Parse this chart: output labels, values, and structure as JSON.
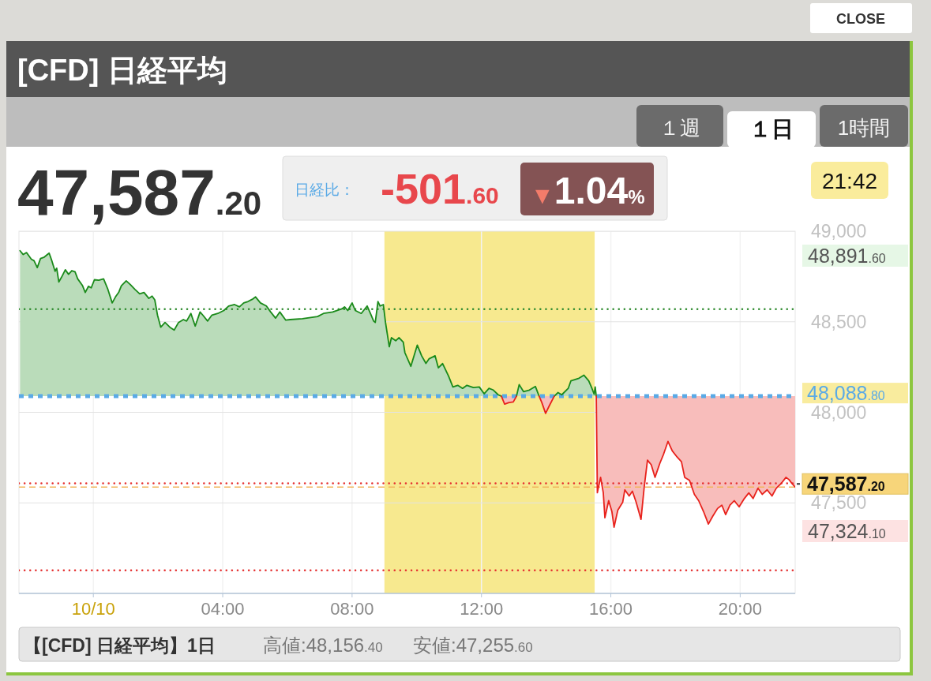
{
  "chart_data": {
    "type": "line",
    "title": "[CFD] 日経平均",
    "xlim": [
      "--10-09T21:42",
      "--10-10T21:42"
    ],
    "xticks": [
      {
        "value": "--10-10T00:00",
        "label": "10/10"
      },
      {
        "value": "--10-10T04:00",
        "label": "04:00"
      },
      {
        "value": "--10-10T08:00",
        "label": "08:00"
      },
      {
        "value": "--10-10T12:00",
        "label": "12:00"
      },
      {
        "value": "--10-10T16:00",
        "label": "16:00"
      },
      {
        "value": "--10-10T20:00",
        "label": "20:00"
      }
    ],
    "ylim": [
      47000,
      49000
    ],
    "yticks": [
      {
        "value": 47500,
        "label": "47,500"
      },
      {
        "value": 48000,
        "label": "48,000"
      },
      {
        "value": 48500,
        "label": "48,500"
      },
      {
        "value": 49000,
        "label": "49,000"
      }
    ],
    "grid": true,
    "series": [
      {
        "color": "#1a8a1a",
        "x": [
          "--10-09T21:44",
          "--10-09T21:50",
          "--10-09T21:56",
          "--10-09T22:05",
          "--10-09T22:10",
          "--10-09T22:16",
          "--10-09T22:22",
          "--10-09T22:29",
          "--10-09T22:38",
          "--10-09T22:43",
          "--10-09T22:49",
          "--10-09T22:52",
          "--10-09T22:56",
          "--10-09T23:01",
          "--10-09T23:08",
          "--10-09T23:14",
          "--10-09T23:20",
          "--10-09T23:26",
          "--10-09T23:31",
          "--10-09T23:40",
          "--10-09T23:45",
          "--10-09T23:51",
          "--10-09T23:56",
          "--10-10T00:02",
          "--10-10T00:10",
          "--10-10T00:19",
          "--10-10T00:27",
          "--10-10T00:35",
          "--10-10T00:41",
          "--10-10T00:47",
          "--10-10T00:52",
          "--10-10T01:01",
          "--10-10T01:09",
          "--10-10T01:17",
          "--10-10T01:26",
          "--10-10T01:34",
          "--10-10T01:43",
          "--10-10T01:49",
          "--10-10T01:54",
          "--10-10T01:59",
          "--10-10T02:05",
          "--10-10T02:13",
          "--10-10T02:22",
          "--10-10T02:30",
          "--10-10T02:38",
          "--10-10T02:47",
          "--10-10T02:53",
          "--10-10T03:01",
          "--10-10T03:09",
          "--10-10T03:18",
          "--10-10T03:23",
          "--10-10T03:32",
          "--10-10T03:40",
          "--10-10T03:51",
          "--10-10T04:02",
          "--10-10T04:11",
          "--10-10T04:22",
          "--10-10T04:31",
          "--10-10T04:39",
          "--10-10T04:47",
          "--10-10T04:56",
          "--10-10T05:01",
          "--10-10T05:10",
          "--10-10T05:21",
          "--10-10T05:29",
          "--10-10T05:38",
          "--10-10T05:46",
          "--10-10T05:57",
          "--10-10T06:05",
          "--10-10T06:28",
          "--10-10T06:56",
          "--10-10T07:07",
          "--10-10T07:24",
          "--10-10T07:41",
          "--10-10T07:46",
          "--10-10T07:52",
          "--10-10T08:00",
          "--10-10T08:06",
          "--10-10T08:17",
          "--10-10T08:28",
          "--10-10T08:34",
          "--10-10T08:40",
          "--10-10T08:43",
          "--10-10T08:48",
          "--10-10T08:52",
          "--10-10T08:58",
          "--10-10T09:02",
          "--10-10T09:09",
          "--10-10T09:13",
          "--10-10T09:21",
          "--10-10T09:27",
          "--10-10T09:35",
          "--10-10T09:38",
          "--10-10T09:49",
          "--10-10T10:01",
          "--10-10T10:09",
          "--10-10T10:17",
          "--10-10T10:23",
          "--10-10T10:34",
          "--10-10T10:40",
          "--10-10T10:48",
          "--10-10T10:59",
          "--10-10T11:07",
          "--10-10T11:16",
          "--10-10T11:25",
          "--10-10T11:33",
          "--10-10T11:45",
          "--10-10T11:56",
          "--10-10T12:05",
          "--10-10T12:14",
          "--10-10T12:22",
          "--10-10T12:31",
          "--10-10T12:37",
          null,
          "--10-10T13:05",
          "--10-10T13:10",
          "--10-10T13:18",
          "--10-10T13:29",
          "--10-10T13:40",
          "--10-10T13:47",
          null,
          "--10-10T14:15",
          "--10-10T14:22",
          "--10-10T14:29",
          "--10-10T14:41",
          "--10-10T14:46",
          "--10-10T15:01",
          "--10-10T15:10",
          "--10-10T15:19",
          "--10-10T15:25",
          "--10-10T15:29",
          "--10-10T15:31",
          "--10-10T15:33"
        ],
        "values": [
          48892,
          48871,
          48882,
          48845,
          48837,
          48799,
          48849,
          48857,
          48879,
          48837,
          48779,
          48796,
          48720,
          48746,
          48787,
          48762,
          48782,
          48776,
          48737,
          48699,
          48662,
          48696,
          48687,
          48732,
          48729,
          48737,
          48679,
          48604,
          48637,
          48662,
          48699,
          48726,
          48704,
          48679,
          48654,
          48662,
          48629,
          48642,
          48621,
          48537,
          48470,
          48496,
          48470,
          48454,
          48496,
          48512,
          48504,
          48546,
          48476,
          48554,
          48537,
          48504,
          48537,
          48546,
          48562,
          48587,
          48595,
          48582,
          48604,
          48612,
          48626,
          48637,
          48604,
          48587,
          48554,
          48520,
          48554,
          48509,
          48512,
          48517,
          48529,
          48546,
          48554,
          48571,
          48582,
          48562,
          48604,
          48562,
          48546,
          48587,
          48546,
          48504,
          48496,
          48612,
          48587,
          48595,
          48496,
          48362,
          48412,
          48395,
          48412,
          48387,
          48329,
          48254,
          48371,
          48312,
          48270,
          48296,
          48312,
          48246,
          48269,
          48200,
          48140,
          48149,
          48132,
          48149,
          48137,
          48140,
          48102,
          48132,
          48123,
          48097,
          48089,
          null,
          48089,
          48153,
          48114,
          48123,
          48143,
          48089,
          null,
          48089,
          48109,
          48097,
          48132,
          48174,
          48188,
          48205,
          48174,
          48132,
          48100,
          48140,
          48089
        ],
        "lower": [
          48089,
          48089,
          48089,
          48089,
          48089,
          48089,
          48089,
          48089,
          48089,
          48089,
          48089,
          48089,
          48089,
          48089,
          48089,
          48089,
          48089,
          48089,
          48089,
          48089,
          48089,
          48089,
          48089,
          48089,
          48089,
          48089,
          48089,
          48089,
          48089,
          48089,
          48089,
          48089,
          48089,
          48089,
          48089,
          48089,
          48089,
          48089,
          48089,
          48089,
          48089,
          48089,
          48089,
          48089,
          48089,
          48089,
          48089,
          48089,
          48089,
          48089,
          48089,
          48089,
          48089,
          48089,
          48089,
          48089,
          48089,
          48089,
          48089,
          48089,
          48089,
          48089,
          48089,
          48089,
          48089,
          48089,
          48089,
          48089,
          48089,
          48089,
          48089,
          48089,
          48089,
          48089,
          48089,
          48089,
          48089,
          48089,
          48089,
          48089,
          48089,
          48089,
          48089,
          48089,
          48089,
          48089,
          48089,
          48089,
          48089,
          48089,
          48089,
          48089,
          48089,
          48089,
          48089,
          48089,
          48089,
          48089,
          48089,
          48089,
          48089,
          48089,
          48089,
          48089,
          48089,
          48089,
          48089,
          48089,
          48089,
          48089,
          48089,
          48089,
          48089,
          null,
          48089,
          48089,
          48089,
          48089,
          48089,
          48089,
          null,
          48089,
          48089,
          48089,
          48089,
          48089,
          48089,
          48089,
          48089,
          48089,
          48089,
          48089,
          48089
        ],
        "upper": [
          48892,
          48871,
          48882,
          48845,
          48837,
          48799,
          48849,
          48857,
          48879,
          48837,
          48779,
          48796,
          48720,
          48746,
          48787,
          48762,
          48782,
          48776,
          48737,
          48699,
          48662,
          48696,
          48687,
          48732,
          48729,
          48737,
          48679,
          48604,
          48637,
          48662,
          48699,
          48726,
          48704,
          48679,
          48654,
          48662,
          48629,
          48642,
          48621,
          48537,
          48470,
          48496,
          48470,
          48454,
          48496,
          48512,
          48504,
          48546,
          48476,
          48554,
          48537,
          48504,
          48537,
          48546,
          48562,
          48587,
          48595,
          48582,
          48604,
          48612,
          48626,
          48637,
          48604,
          48587,
          48554,
          48520,
          48554,
          48509,
          48512,
          48517,
          48529,
          48546,
          48554,
          48571,
          48582,
          48562,
          48604,
          48562,
          48546,
          48587,
          48546,
          48504,
          48496,
          48612,
          48587,
          48595,
          48496,
          48362,
          48412,
          48395,
          48412,
          48387,
          48329,
          48254,
          48371,
          48312,
          48270,
          48296,
          48312,
          48246,
          48269,
          48200,
          48140,
          48149,
          48132,
          48149,
          48137,
          48140,
          48102,
          48132,
          48123,
          48097,
          48089,
          null,
          48089,
          48153,
          48114,
          48123,
          48143,
          48089,
          null,
          48089,
          48109,
          48097,
          48132,
          48174,
          48188,
          48205,
          48174,
          48132,
          48100,
          48140,
          48089
        ]
      },
      {
        "color": "#e8221c",
        "x": [
          "--10-10T12:37",
          "--10-10T12:43",
          "--10-10T12:51",
          "--10-10T12:59",
          "--10-10T13:05",
          null,
          "--10-10T13:47",
          "--10-10T13:52",
          "--10-10T13:59",
          "--10-10T14:06",
          "--10-10T14:15",
          null,
          "--10-10T15:33",
          "--10-10T15:35",
          "--10-10T15:41",
          "--10-10T15:46",
          "--10-10T15:49",
          "--10-10T15:56",
          "--10-10T16:02",
          "--10-10T16:06",
          "--10-10T16:13",
          "--10-10T16:22",
          "--10-10T16:26",
          "--10-10T16:34",
          "--10-10T16:40",
          "--10-10T16:47",
          "--10-10T16:56",
          "--10-10T17:02",
          "--10-10T17:08",
          "--10-10T17:15",
          "--10-10T17:22",
          "--10-10T17:31",
          "--10-10T17:38",
          "--10-10T17:46",
          "--10-10T17:54",
          "--10-10T18:03",
          "--10-10T18:11",
          "--10-10T18:17",
          "--10-10T18:26",
          "--10-10T18:35",
          "--10-10T18:43",
          "--10-10T18:52",
          "--10-10T19:01",
          "--10-10T19:09",
          "--10-10T19:18",
          "--10-10T19:26",
          "--10-10T19:33",
          "--10-10T19:41",
          "--10-10T19:49",
          "--10-10T19:58",
          "--10-10T20:07",
          "--10-10T20:16",
          "--10-10T20:24",
          "--10-10T20:33",
          "--10-10T20:41",
          "--10-10T20:50",
          "--10-10T20:59",
          "--10-10T21:07",
          "--10-10T21:16",
          "--10-10T21:25",
          "--10-10T21:31",
          "--10-10T21:36",
          "--10-10T21:42"
        ],
        "values": [
          48089,
          48045,
          48054,
          48057,
          48089,
          null,
          48089,
          48054,
          47994,
          48037,
          48089,
          null,
          48089,
          47556,
          47641,
          47556,
          47418,
          47512,
          47452,
          47366,
          47460,
          47503,
          47572,
          47538,
          47564,
          47503,
          47409,
          47589,
          47736,
          47710,
          47641,
          47719,
          47770,
          47839,
          47787,
          47753,
          47727,
          47641,
          47624,
          47547,
          47512,
          47452,
          47383,
          47426,
          47469,
          47487,
          47435,
          47487,
          47512,
          47478,
          47521,
          47555,
          47524,
          47581,
          47547,
          47572,
          47538,
          47581,
          47607,
          47641,
          47627,
          47607,
          47587.2
        ],
        "lower": [
          48089,
          48045,
          48054,
          48057,
          48089,
          null,
          48089,
          48054,
          47994,
          48037,
          48089,
          null,
          48089,
          47556,
          47641,
          47556,
          47418,
          47512,
          47452,
          47366,
          47460,
          47503,
          47572,
          47538,
          47564,
          47503,
          47409,
          47589,
          47736,
          47710,
          47641,
          47719,
          47770,
          47839,
          47787,
          47753,
          47727,
          47641,
          47624,
          47547,
          47512,
          47452,
          47383,
          47426,
          47469,
          47487,
          47435,
          47487,
          47512,
          47478,
          47521,
          47555,
          47524,
          47581,
          47547,
          47572,
          47538,
          47581,
          47607,
          47641,
          47627,
          47607,
          47587.2
        ],
        "upper": [
          48089,
          48089,
          48089,
          48089,
          48089,
          null,
          48089,
          48089,
          48089,
          48089,
          48089,
          null,
          48089,
          48089,
          48089,
          48089,
          48089,
          48089,
          48089,
          48089,
          48089,
          48089,
          48089,
          48089,
          48089,
          48089,
          48089,
          48089,
          48089,
          48089,
          48089,
          48089,
          48089,
          48089,
          48089,
          48089,
          48089,
          48089,
          48089,
          48089,
          48089,
          48089,
          48089,
          48089,
          48089,
          48089,
          48089,
          48089,
          48089,
          48089,
          48089,
          48089,
          48089,
          48089,
          48089,
          48089,
          48089,
          48089,
          48089,
          48089,
          48089,
          48089,
          48089
        ]
      }
    ],
    "ref_lines": [
      {
        "axis": "y",
        "value": 48088.8,
        "label": "48,088.80",
        "color": "#5aaae6",
        "line_style": "dotted"
      },
      {
        "axis": "y",
        "value": 47587.2,
        "label": "47,587.20",
        "color": "#f2b55c",
        "line_style": "dashed"
      },
      {
        "axis": "y",
        "value": 48570,
        "color": "#2e8b2e",
        "line_style": "dotted"
      },
      {
        "axis": "y",
        "value": 47608,
        "color": "#e53030",
        "line_style": "dotted"
      },
      {
        "axis": "y",
        "value": 47127,
        "color": "#e53030",
        "line_style": "dotted"
      }
    ],
    "bands": [
      {
        "axis": "x",
        "from": "--10-10T09:00",
        "to": "--10-10T15:30",
        "color": "#f7e98f"
      }
    ],
    "annotations": [
      "47,587.20",
      "日経比：",
      "-501.60",
      "▼1.04%",
      "21:42",
      "高値:48,156.40",
      "安値:47,255.60",
      "【[CFD] 日経平均】1日",
      "１週",
      "１日",
      "1時間",
      "CLOSE",
      "48,891.60",
      "47,324.10"
    ]
  }
}
